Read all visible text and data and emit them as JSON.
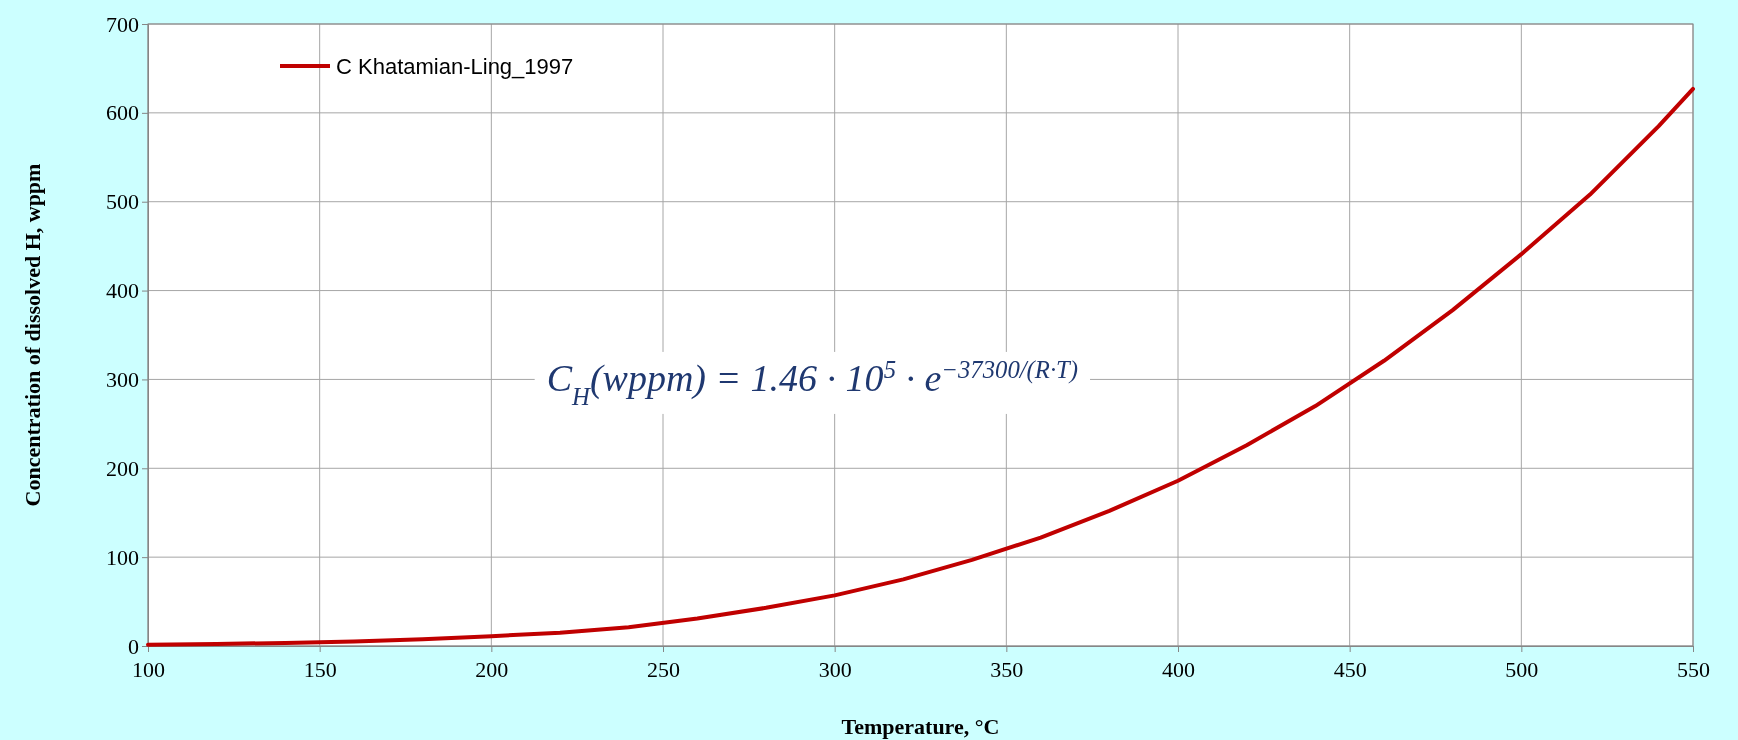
{
  "chart_data": {
    "type": "line",
    "xlabel": "Temperature, °C",
    "ylabel": "Concentration of dissolved H, wppm",
    "x": [
      100,
      120,
      140,
      160,
      180,
      200,
      220,
      240,
      260,
      280,
      300,
      320,
      340,
      360,
      380,
      400,
      420,
      440,
      460,
      480,
      500,
      520,
      540,
      550
    ],
    "series": [
      {
        "name": "C Khatamian-Ling_1997",
        "color": "#c00000",
        "values": [
          1.5,
          2.3,
          3.5,
          5,
          7.5,
          11,
          15,
          21,
          31,
          43,
          57,
          75,
          97,
          122,
          152,
          186,
          226,
          270,
          321,
          378,
          441,
          508,
          585,
          627
        ]
      }
    ],
    "xlim": [
      100,
      550
    ],
    "xticks": [
      100,
      150,
      200,
      250,
      300,
      350,
      400,
      450,
      500,
      550
    ],
    "ylim": [
      0,
      700
    ],
    "yticks": [
      0,
      100,
      200,
      300,
      400,
      500,
      600,
      700
    ],
    "grid": true,
    "legend": "top left",
    "marker": "none",
    "line_style": "solid",
    "annotations": [
      "C$_{H}$(wppm) = 1.46 · 10$^{5}$ · e$^{−37300/(R·T)}$"
    ]
  }
}
